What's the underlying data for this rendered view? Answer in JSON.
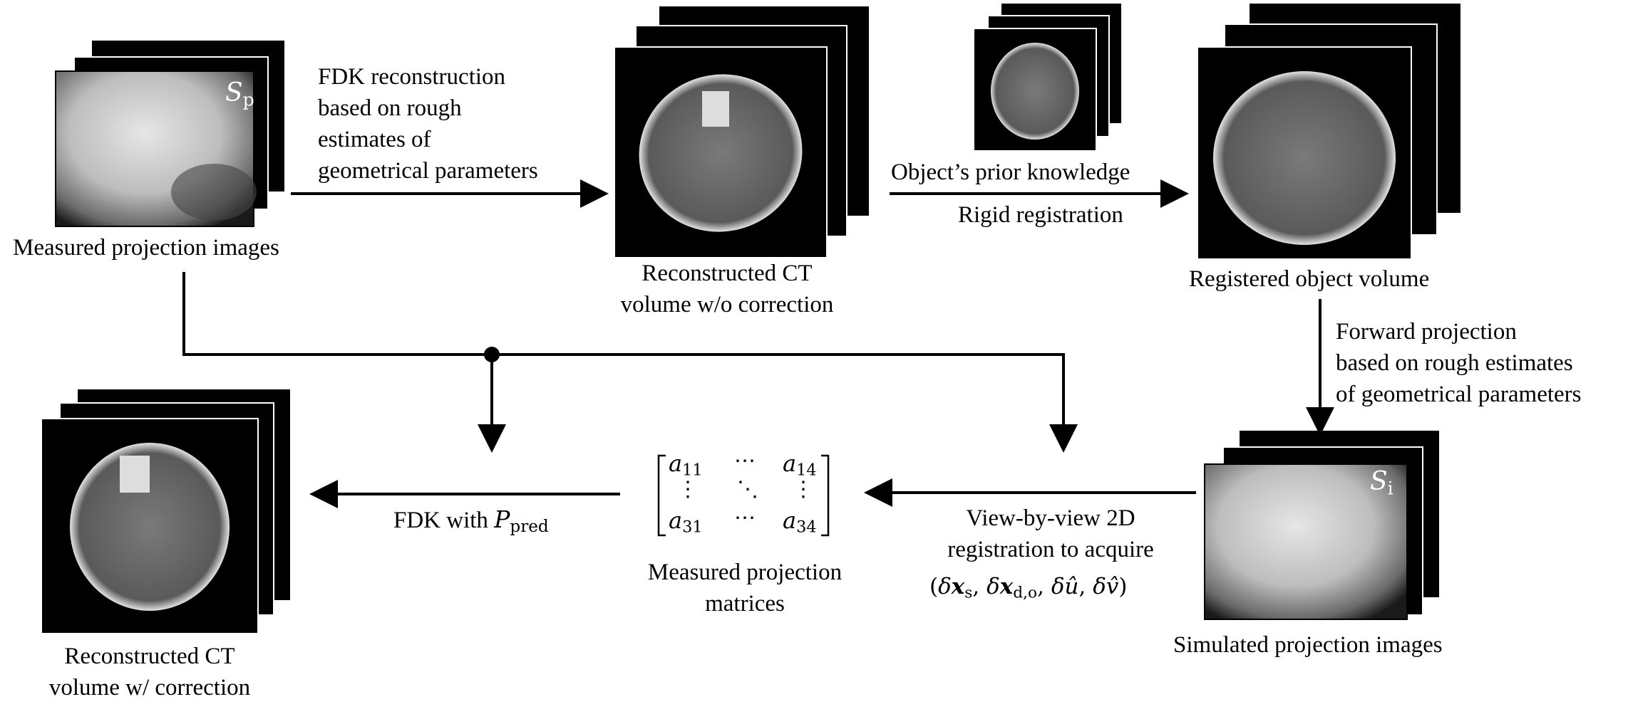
{
  "labels": {
    "measured_images": "Measured projection images",
    "fdk_text_1": "FDK reconstruction",
    "fdk_text_2": "based on rough",
    "fdk_text_3": "estimates of",
    "fdk_text_4": "geometrical parameters",
    "recon_wo_1": "Reconstructed CT",
    "recon_wo_2": "volume w/o correction",
    "prior_knowledge": "Object’s prior knowledge",
    "rigid_registration": "Rigid registration",
    "registered_volume": "Registered object volume",
    "forward_1": "Forward projection",
    "forward_2": "based on rough estimates",
    "forward_3": "of geometrical parameters",
    "simulated_images": "Simulated projection images",
    "view_1": "View-by-view 2D",
    "view_2": "registration to acquire",
    "view_params": "(δxₛ, δx_d,o, δû, δv̂)",
    "matrices_1": "Measured projection",
    "matrices_2": "matrices",
    "fdk_with": "FDK with",
    "recon_w_1": "Reconstructed CT",
    "recon_w_2": "volume w/ correction"
  },
  "math": {
    "sp_symbol": "S",
    "sp_sub": "p",
    "si_symbol": "S",
    "si_sub": "i",
    "p_symbol": "P",
    "p_sub": "pred",
    "a11": "a",
    "a11_sub": "11",
    "a14": "a",
    "a14_sub": "14",
    "a31": "a",
    "a31_sub": "31",
    "a34": "a",
    "a34_sub": "34",
    "hdots": "⋯",
    "vdots": "⋮",
    "ddots": "⋱",
    "delta": "δ",
    "x": "x",
    "s_sub": "s",
    "do_sub": "d,o",
    "u_hat": "û",
    "v_hat": "v̂"
  },
  "colors": {
    "line": "#000000",
    "frame": "#000000"
  }
}
